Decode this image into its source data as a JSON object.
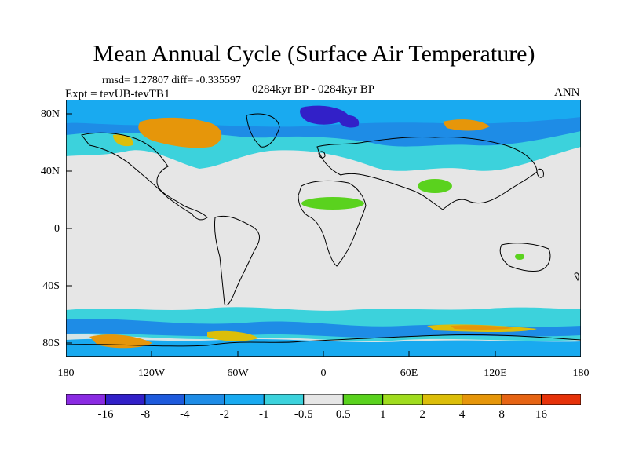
{
  "title": "Mean Annual Cycle (Surface Air Temperature)",
  "stats": "rmsd= 1.27807 diff= -0.335597",
  "expt": "Expt = tevUB-tevTB1",
  "period": "0284kyr BP - 0284kyr BP",
  "season": "ANN",
  "map": {
    "lat_labels": [
      "80N",
      "40N",
      "0",
      "40S",
      "80S"
    ],
    "lon_labels": [
      "180",
      "120W",
      "60W",
      "0",
      "60E",
      "120E",
      "180"
    ],
    "lat_range": [
      -90,
      90
    ],
    "lon_range": [
      -180,
      180
    ]
  },
  "colorbar": {
    "labels": [
      "-16",
      "-8",
      "-4",
      "-2",
      "-1",
      "-0.5",
      "0.5",
      "1",
      "2",
      "4",
      "8",
      "16"
    ],
    "colors": [
      "#8a2be2",
      "#3220c8",
      "#1e5adc",
      "#1e8ce6",
      "#19aaf0",
      "#3cd2dc",
      "#e6e6e6",
      "#5ad21e",
      "#a0dc1e",
      "#dcbe0a",
      "#e6960a",
      "#e66414",
      "#e6320a"
    ]
  },
  "colors": {
    "background": "#e6e6e6",
    "cold": "#1e8ce6",
    "cool": "#3cd2dc",
    "warm": "#e6960a",
    "coastline": "#000000"
  }
}
